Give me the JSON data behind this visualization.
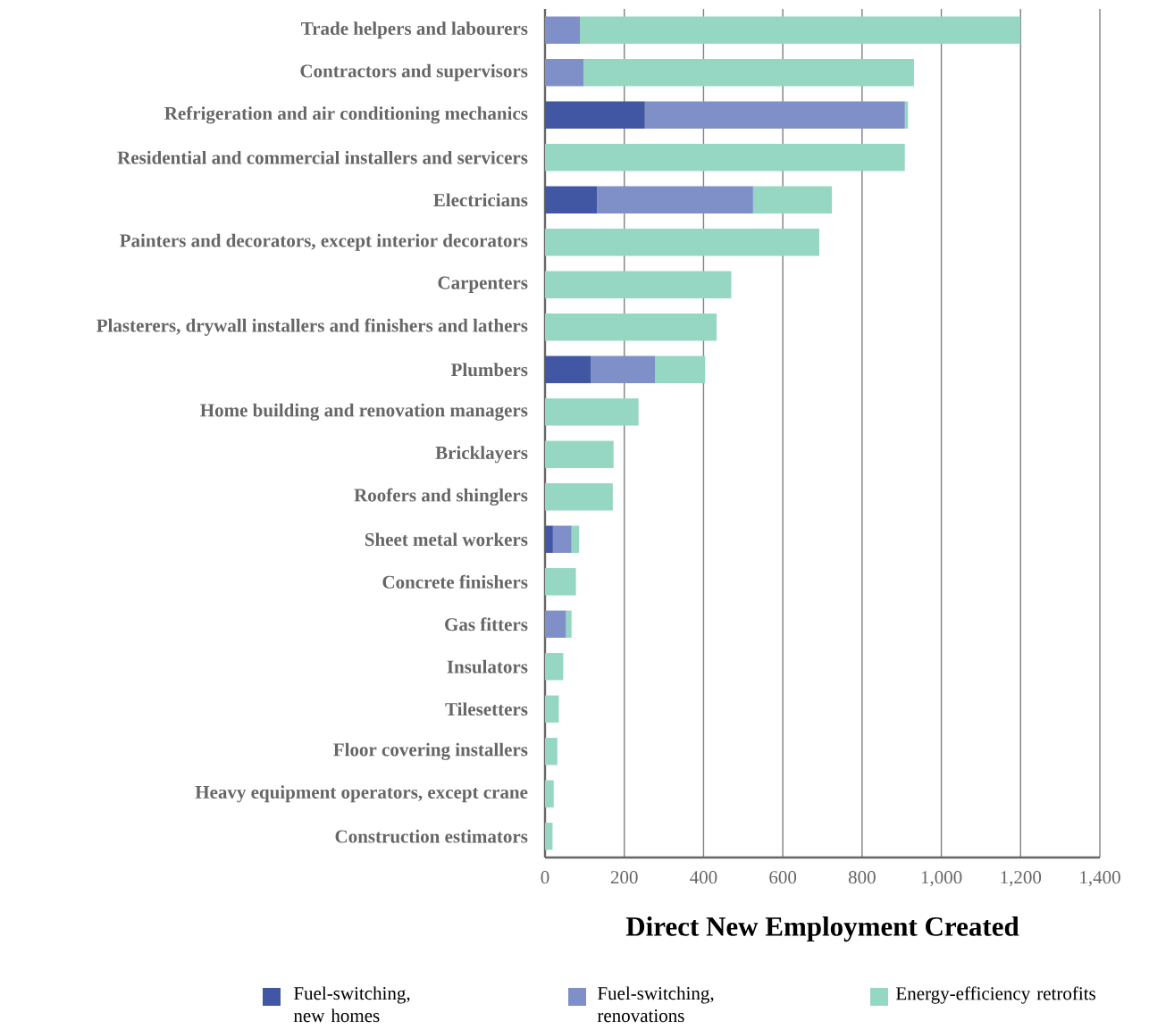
{
  "chart_data": {
    "type": "bar",
    "orientation": "horizontal",
    "stacked": true,
    "categories": [
      "Trade helpers and labourers",
      "Contractors and supervisors",
      "Refrigeration and air conditioning mechanics",
      "Residential and commercial installers and servicers",
      "Electricians",
      "Painters and decorators, except interior decorators",
      "Carpenters",
      "Plasterers, drywall installers and finishers and lathers",
      "Plumbers",
      "Home building and renovation managers",
      "Bricklayers",
      "Roofers and shinglers",
      "Sheet metal workers",
      "Concrete finishers",
      "Gas fitters",
      "Insulators",
      "Tilesetters",
      "Floor covering installers",
      "Heavy equipment operators, except crane",
      "Construction estimators"
    ],
    "series": [
      {
        "name": "Fuel-switching, new homes",
        "color": "#4257a3",
        "values": [
          0,
          0,
          252,
          0,
          131,
          0,
          0,
          0,
          115,
          0,
          0,
          0,
          20,
          0,
          0,
          0,
          0,
          0,
          0,
          0
        ]
      },
      {
        "name": "Fuel-switching, renovations",
        "color": "#7f8fc8",
        "values": [
          88,
          97,
          656,
          0,
          394,
          0,
          0,
          0,
          163,
          0,
          0,
          0,
          47,
          0,
          53,
          0,
          0,
          0,
          0,
          0
        ]
      },
      {
        "name": "Energy-efficiency retrofits",
        "color": "#96d7c3",
        "values": [
          1112,
          834,
          8,
          908,
          199,
          692,
          470,
          433,
          126,
          236,
          173,
          171,
          19,
          78,
          14,
          46,
          35,
          31,
          22,
          19
        ]
      }
    ],
    "xlabel": "Direct New Employment Created",
    "xlim": [
      0,
      1400
    ],
    "xticks": [
      0,
      200,
      400,
      600,
      800,
      {
        "value": 1000,
        "label": "1,000"
      },
      {
        "value": 1200,
        "label": "1,200"
      },
      {
        "value": 1400,
        "label": "1,400"
      }
    ],
    "grid": "x",
    "legend": "bottom"
  }
}
